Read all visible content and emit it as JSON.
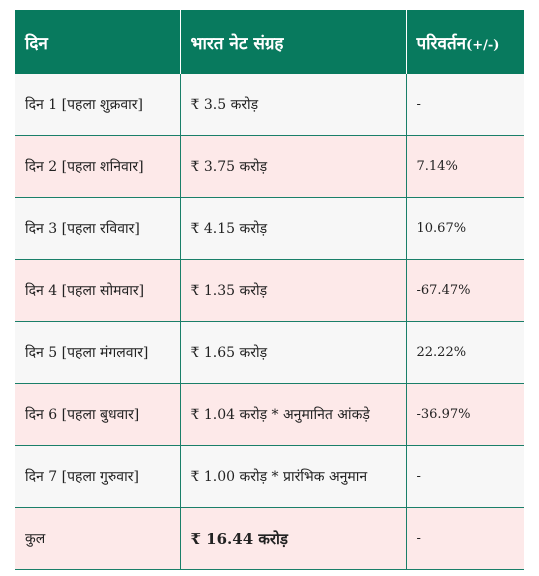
{
  "header": {
    "col_day": "दिन",
    "col_collection": "भारत नेट संग्रह",
    "col_change_main": "परिवर्तन",
    "col_change_suffix": "(+/-)"
  },
  "rows": [
    {
      "day": "दिन 1 [पहला शुक्रवार]",
      "collection": "₹ 3.5 करोड़",
      "change": "-"
    },
    {
      "day": "दिन 2 [पहला शनिवार]",
      "collection": "₹ 3.75 करोड़",
      "change": "7.14%"
    },
    {
      "day": "दिन 3 [पहला रविवार]",
      "collection": "₹ 4.15 करोड़",
      "change": "10.67%"
    },
    {
      "day": "दिन 4 [पहला सोमवार]",
      "collection": "₹ 1.35 करोड़",
      "change": "-67.47%"
    },
    {
      "day": "दिन 5 [पहला मंगलवार]",
      "collection": "₹ 1.65 करोड़",
      "change": "22.22%"
    },
    {
      "day": "दिन 6 [पहला बुधवार]",
      "collection": "₹ 1.04 करोड़ * अनुमानित आंकड़े",
      "change": "-36.97%"
    },
    {
      "day": "दिन 7 [पहला गुरुवार]",
      "collection": "₹ 1.00 करोड़ * प्रारंभिक अनुमान",
      "change": "-"
    }
  ],
  "total": {
    "label": "कुल",
    "collection": "₹ 16.44 करोड़",
    "change": "-"
  },
  "colors": {
    "header_bg": "#087a5e",
    "row_light": "#f7f7f7",
    "row_pink": "#fde9e9",
    "border": "#1a7f69"
  }
}
